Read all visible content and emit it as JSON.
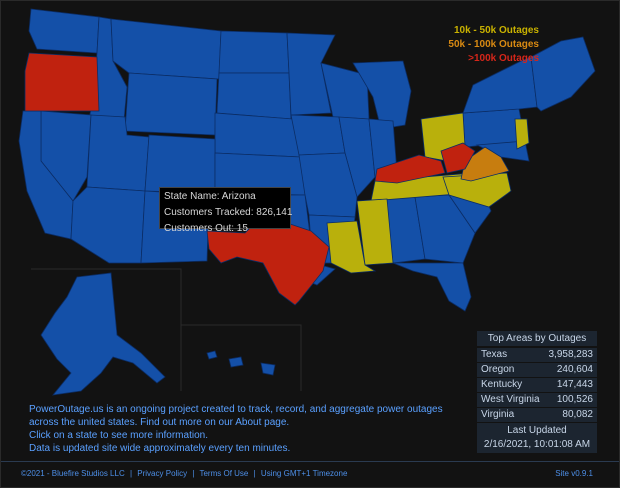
{
  "legend": [
    {
      "label": "10k - 50k Outages",
      "color": "#c9b200"
    },
    {
      "label": "50k - 100k Outages",
      "color": "#d98a12"
    },
    {
      "label": ">100k Outages",
      "color": "#d6261a"
    }
  ],
  "colors": {
    "normal": "#1450a8",
    "level1": "#b9b00c",
    "level2": "#c77d0f",
    "level3": "#c0220f",
    "border": "#0b2d66"
  },
  "tooltip": {
    "state_name": "State Name: Arizona",
    "customers_tracked": "Customers Tracked: 826,141",
    "customers_out": "Customers Out: 15"
  },
  "top_areas": {
    "title": "Top Areas by Outages",
    "rows": [
      {
        "state": "Texas",
        "value": "3,958,283"
      },
      {
        "state": "Oregon",
        "value": "240,604"
      },
      {
        "state": "Kentucky",
        "value": "147,443"
      },
      {
        "state": "West Virginia",
        "value": "100,526"
      },
      {
        "state": "Virginia",
        "value": "80,082"
      }
    ],
    "last_updated_label": "Last Updated",
    "last_updated_value": "2/16/2021, 10:01:08 AM"
  },
  "about": {
    "line1": "PowerOutage.us is an ongoing project created to track, record, and aggregate power outages",
    "line2": "across the united states. Find out more on our About page.",
    "line3": "Click on a state to see more information.",
    "line4": "Data is updated site wide approximately every ten minutes."
  },
  "footer": {
    "copyright": "©2021 - Bluefire Studios LLC",
    "privacy": "Privacy Policy",
    "terms": "Terms Of Use",
    "timezone": "Using GMT+1 Timezone",
    "version": "Site v0.9.1"
  }
}
